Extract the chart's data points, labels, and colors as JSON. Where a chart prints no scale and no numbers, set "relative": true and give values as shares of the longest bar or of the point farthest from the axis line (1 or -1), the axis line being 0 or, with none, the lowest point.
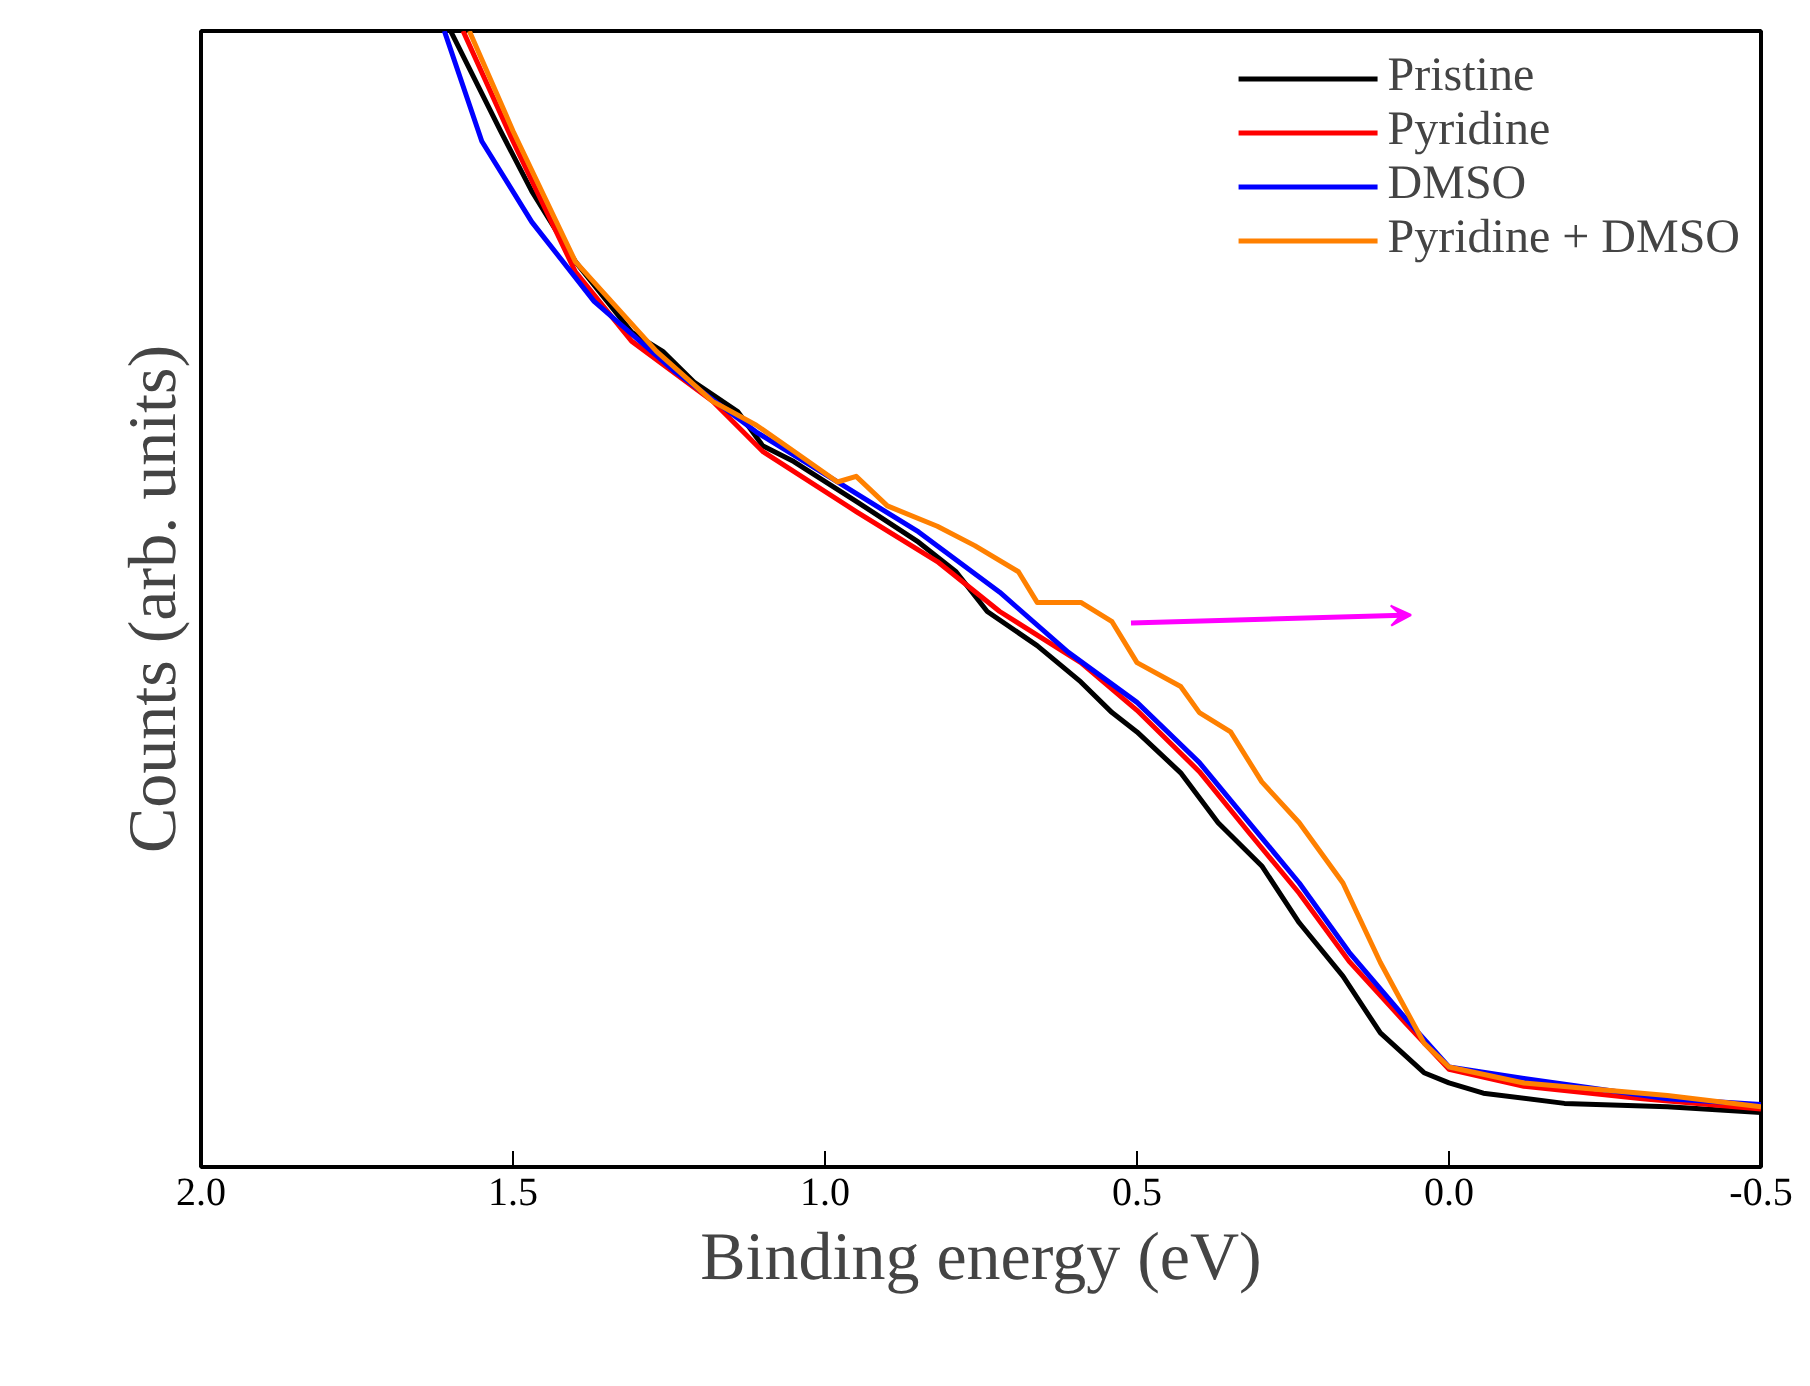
{
  "chart_data": {
    "type": "line",
    "relative": true,
    "xlabel": "Binding energy (eV)",
    "ylabel": "Counts (arb. units)",
    "xlim": [
      2.0,
      -0.5
    ],
    "xticks": [
      {
        "value": 2.0,
        "label": "2.0"
      },
      {
        "value": 1.5,
        "label": "1.5"
      },
      {
        "value": 1.0,
        "label": "1.0"
      },
      {
        "value": 0.5,
        "label": "0.5"
      },
      {
        "value": 0.0,
        "label": "0.0"
      },
      {
        "value": -0.5,
        "label": "-0.5"
      }
    ],
    "tick_labels": "x",
    "grid": false,
    "legend": "top right",
    "marker": "none",
    "line_style": "solid",
    "series": [
      {
        "name": "Pristine",
        "color": "#000000",
        "x": [
          1.6,
          1.52,
          1.47,
          1.4,
          1.31,
          1.26,
          1.21,
          1.14,
          1.1,
          1.05,
          0.95,
          0.85,
          0.79,
          0.74,
          0.66,
          0.59,
          0.54,
          0.5,
          0.43,
          0.37,
          0.3,
          0.24,
          0.17,
          0.11,
          0.04,
          0.0,
          -0.055,
          -0.185,
          -0.35,
          -0.5
        ],
        "values": [
          1.0,
          0.912,
          0.859,
          0.797,
          0.735,
          0.718,
          0.691,
          0.665,
          0.635,
          0.621,
          0.586,
          0.55,
          0.524,
          0.489,
          0.459,
          0.427,
          0.4,
          0.383,
          0.347,
          0.303,
          0.265,
          0.215,
          0.168,
          0.118,
          0.083,
          0.074,
          0.065,
          0.056,
          0.053,
          0.048
        ]
      },
      {
        "name": "Pyridine",
        "color": "#ff0000",
        "x": [
          1.58,
          1.5,
          1.4,
          1.31,
          1.18,
          1.1,
          0.95,
          0.82,
          0.72,
          0.59,
          0.5,
          0.4,
          0.32,
          0.24,
          0.16,
          0.07,
          0.0,
          -0.12,
          -0.31,
          -0.5
        ],
        "values": [
          1.0,
          0.903,
          0.788,
          0.727,
          0.674,
          0.63,
          0.577,
          0.533,
          0.489,
          0.444,
          0.402,
          0.348,
          0.294,
          0.241,
          0.181,
          0.127,
          0.086,
          0.071,
          0.06,
          0.051
        ]
      },
      {
        "name": "DMSO",
        "color": "#0000ff",
        "x": [
          1.61,
          1.55,
          1.47,
          1.37,
          1.24,
          1.11,
          0.98,
          0.85,
          0.72,
          0.61,
          0.5,
          0.4,
          0.32,
          0.24,
          0.16,
          0.07,
          0.0,
          -0.12,
          -0.35,
          -0.5
        ],
        "values": [
          1.0,
          0.903,
          0.832,
          0.762,
          0.7,
          0.647,
          0.603,
          0.559,
          0.506,
          0.453,
          0.409,
          0.356,
          0.303,
          0.25,
          0.189,
          0.131,
          0.088,
          0.078,
          0.06,
          0.055
        ]
      },
      {
        "name": "Pyridine + DMSO",
        "color": "#ff8000",
        "x": [
          1.57,
          1.5,
          1.4,
          1.27,
          1.18,
          1.11,
          1.05,
          0.98,
          0.95,
          0.9,
          0.82,
          0.76,
          0.69,
          0.66,
          0.59,
          0.54,
          0.5,
          0.43,
          0.4,
          0.35,
          0.3,
          0.24,
          0.17,
          0.11,
          0.04,
          0.0,
          -0.12,
          -0.35,
          -0.5
        ],
        "values": [
          1.0,
          0.912,
          0.797,
          0.718,
          0.674,
          0.653,
          0.63,
          0.603,
          0.608,
          0.582,
          0.564,
          0.547,
          0.524,
          0.497,
          0.497,
          0.48,
          0.444,
          0.423,
          0.4,
          0.383,
          0.339,
          0.303,
          0.25,
          0.18,
          0.109,
          0.088,
          0.074,
          0.063,
          0.053
        ]
      }
    ]
  }
}
